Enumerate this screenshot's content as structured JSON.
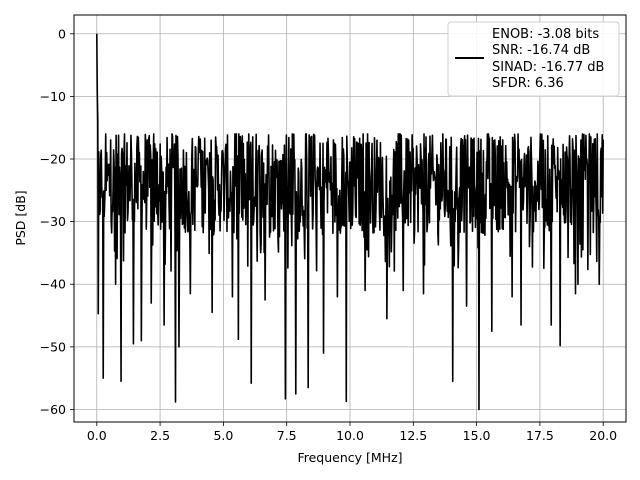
{
  "chart_data": {
    "type": "line",
    "title": "",
    "xlabel": "Frequency [MHz]",
    "ylabel": "PSD [dB]",
    "xlim": [
      -0.9,
      20.9
    ],
    "ylim": [
      -62,
      3
    ],
    "x_ticks": [
      0.0,
      2.5,
      5.0,
      7.5,
      10.0,
      12.5,
      15.0,
      17.5,
      20.0
    ],
    "x_tick_labels": [
      "0.0",
      "2.5",
      "5.0",
      "7.5",
      "10.0",
      "12.5",
      "15.0",
      "17.5",
      "20.0"
    ],
    "y_ticks": [
      0,
      -10,
      -20,
      -30,
      -40,
      -50,
      -60
    ],
    "y_tick_labels": [
      "0",
      "−10",
      "−20",
      "−30",
      "−40",
      "−50",
      "−60"
    ],
    "grid": true,
    "legend_position": "top-right",
    "line_color": "#000000",
    "series": [
      {
        "points": 1024,
        "x_range": [
          0,
          20
        ],
        "peak": {
          "x": 0.0,
          "y": 0.0
        },
        "noise_band": {
          "upper": -17,
          "lower": -32,
          "typical_center": -24
        },
        "deep_nulls": [
          {
            "x": 0.05,
            "y": -44.7
          },
          {
            "x": 0.25,
            "y": -55.0
          },
          {
            "x": 0.75,
            "y": -40.0
          },
          {
            "x": 0.95,
            "y": -55.5
          },
          {
            "x": 1.45,
            "y": -49.5
          },
          {
            "x": 1.75,
            "y": -49.0
          },
          {
            "x": 2.15,
            "y": -43.0
          },
          {
            "x": 2.65,
            "y": -46.5
          },
          {
            "x": 3.1,
            "y": -58.8
          },
          {
            "x": 3.25,
            "y": -50.0
          },
          {
            "x": 3.7,
            "y": -41.5
          },
          {
            "x": 4.55,
            "y": -44.5
          },
          {
            "x": 5.35,
            "y": -42.0
          },
          {
            "x": 5.6,
            "y": -48.8
          },
          {
            "x": 6.1,
            "y": -55.8
          },
          {
            "x": 6.65,
            "y": -42.5
          },
          {
            "x": 7.45,
            "y": -58.3
          },
          {
            "x": 7.85,
            "y": -57.5
          },
          {
            "x": 8.35,
            "y": -56.5
          },
          {
            "x": 8.95,
            "y": -51.0
          },
          {
            "x": 9.5,
            "y": -42.0
          },
          {
            "x": 9.85,
            "y": -58.7
          },
          {
            "x": 10.6,
            "y": -41.0
          },
          {
            "x": 11.45,
            "y": -45.5
          },
          {
            "x": 12.1,
            "y": -41.0
          },
          {
            "x": 12.9,
            "y": -41.5
          },
          {
            "x": 14.05,
            "y": -55.5
          },
          {
            "x": 14.6,
            "y": -43.5
          },
          {
            "x": 15.1,
            "y": -60.0
          },
          {
            "x": 15.6,
            "y": -47.5
          },
          {
            "x": 16.4,
            "y": -42.0
          },
          {
            "x": 16.75,
            "y": -46.5
          },
          {
            "x": 17.95,
            "y": -46.5
          },
          {
            "x": 18.3,
            "y": -49.8
          },
          {
            "x": 18.9,
            "y": -41.5
          },
          {
            "x": 19.0,
            "y": -40.0
          },
          {
            "x": 19.85,
            "y": -40.0
          }
        ]
      }
    ],
    "legend": {
      "lines": [
        "ENOB: -3.08 bits",
        "SNR: -16.74 dB",
        "SINAD: -16.77 dB",
        "SFDR: 6.36"
      ]
    }
  }
}
